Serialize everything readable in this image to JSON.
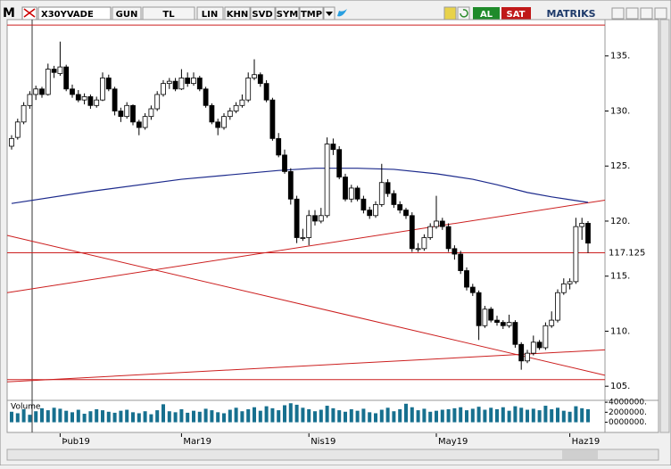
{
  "toolbar": {
    "logo": "M",
    "symbol": "X30YVADE",
    "buttons": [
      "GUN",
      "TL",
      "LIN",
      "KHN",
      "SVD",
      "SYM",
      "TMP"
    ],
    "buy": "AL",
    "sell": "SAT",
    "brand": "MATRIKS"
  },
  "chart_data": {
    "type": "candlestick",
    "categories": [
      null,
      null,
      null,
      null,
      null,
      null,
      null,
      null,
      "Þub19",
      null,
      null,
      null,
      null,
      null,
      null,
      null,
      null,
      null,
      null,
      null,
      null,
      null,
      null,
      null,
      null,
      null,
      null,
      null,
      "Mar19",
      null,
      null,
      null,
      null,
      null,
      null,
      null,
      null,
      null,
      null,
      null,
      null,
      null,
      null,
      null,
      null,
      null,
      null,
      null,
      null,
      "Nis19",
      null,
      null,
      null,
      null,
      null,
      null,
      null,
      null,
      null,
      null,
      null,
      null,
      null,
      null,
      null,
      null,
      null,
      null,
      null,
      null,
      "May19",
      null,
      null,
      null,
      null,
      null,
      null,
      null,
      null,
      null,
      null,
      null,
      null,
      null,
      null,
      null,
      null,
      null,
      null,
      null,
      null,
      null,
      "Haz19",
      null,
      null,
      null
    ],
    "ohlc": [
      [
        126.8,
        127.8,
        126.5,
        127.5
      ],
      [
        127.6,
        129.3,
        127.4,
        129
      ],
      [
        129,
        130.8,
        128.8,
        130.5
      ],
      [
        130.5,
        131.8,
        130.2,
        131.5
      ],
      [
        131.5,
        132.3,
        131,
        132
      ],
      [
        132,
        132.2,
        131.2,
        131.5
      ],
      [
        131.5,
        134.3,
        131.4,
        133.8
      ],
      [
        133.8,
        134.1,
        133,
        133.5
      ],
      [
        133.4,
        136.3,
        133.2,
        134
      ],
      [
        134,
        134.2,
        131.8,
        132
      ],
      [
        132,
        132.4,
        131.2,
        131.5
      ],
      [
        131.5,
        131.9,
        130.8,
        131
      ],
      [
        131,
        131.6,
        130.6,
        131.3
      ],
      [
        131.3,
        131.5,
        130.2,
        130.5
      ],
      [
        130.5,
        131.3,
        130.3,
        131
      ],
      [
        131,
        133.5,
        130.9,
        133
      ],
      [
        133,
        133.3,
        131.8,
        132
      ],
      [
        132,
        132.2,
        129.6,
        130
      ],
      [
        130,
        130.3,
        129,
        129.5
      ],
      [
        129.5,
        130.8,
        129.3,
        130.5
      ],
      [
        130.5,
        130.6,
        128.7,
        129
      ],
      [
        129,
        129.2,
        127.8,
        128.5
      ],
      [
        128.5,
        129.8,
        128.3,
        129.5
      ],
      [
        129.5,
        130.5,
        129.2,
        130.2
      ],
      [
        130.2,
        131.8,
        130,
        131.5
      ],
      [
        131.5,
        132.8,
        131.3,
        132.5
      ],
      [
        132.5,
        133,
        132,
        132.7
      ],
      [
        132.7,
        133,
        131.8,
        132
      ],
      [
        132,
        133.8,
        131.9,
        133
      ],
      [
        133,
        133.5,
        132.2,
        132.5
      ],
      [
        132.5,
        133.5,
        132.3,
        133
      ],
      [
        133,
        133.2,
        131.8,
        132
      ],
      [
        132,
        132.2,
        130.3,
        130.5
      ],
      [
        130.5,
        130.7,
        128.8,
        129
      ],
      [
        129,
        129.3,
        127.8,
        128.5
      ],
      [
        128.5,
        129.8,
        128.3,
        129.5
      ],
      [
        129.5,
        130.3,
        129.2,
        130
      ],
      [
        130,
        130.8,
        129.8,
        130.5
      ],
      [
        130.5,
        131.5,
        130.3,
        131
      ],
      [
        131,
        133.5,
        130.8,
        133
      ],
      [
        133,
        134.7,
        132.8,
        133.3
      ],
      [
        133.3,
        133.5,
        132.2,
        132.5
      ],
      [
        132.5,
        132.8,
        130.8,
        131
      ],
      [
        131,
        131.2,
        127.3,
        127.5
      ],
      [
        127.5,
        128,
        125.8,
        126
      ],
      [
        126,
        126.5,
        124.3,
        124.5
      ],
      [
        124.5,
        124.8,
        121.5,
        122
      ],
      [
        122,
        122.3,
        118,
        118.5
      ],
      [
        118.5,
        119.3,
        118.2,
        118.5
      ],
      [
        118.5,
        121,
        117.8,
        120.5
      ],
      [
        120.5,
        121,
        119.6,
        120
      ],
      [
        120,
        121.2,
        119.8,
        120.5
      ],
      [
        120.5,
        127.6,
        120.3,
        127
      ],
      [
        127,
        127.5,
        126,
        126.5
      ],
      [
        126.5,
        126.8,
        123.8,
        124
      ],
      [
        124,
        124.3,
        121.8,
        122
      ],
      [
        122,
        123.3,
        121.7,
        123
      ],
      [
        123,
        123.2,
        121.8,
        122
      ],
      [
        122,
        122.3,
        120.7,
        121
      ],
      [
        121,
        121.3,
        120.2,
        120.5
      ],
      [
        120.5,
        121.8,
        120.3,
        121.5
      ],
      [
        121.5,
        125.2,
        121.3,
        123.5
      ],
      [
        123.5,
        123.8,
        122.2,
        122.5
      ],
      [
        122.5,
        122.8,
        121.2,
        121.5
      ],
      [
        121.5,
        121.8,
        120.7,
        121
      ],
      [
        121,
        121.2,
        120.2,
        120.5
      ],
      [
        120.5,
        120.8,
        117.2,
        117.5
      ],
      [
        117.5,
        118,
        117.2,
        117.5
      ],
      [
        117.5,
        118.8,
        117.3,
        118.5
      ],
      [
        118.5,
        119.8,
        118.3,
        119.5
      ],
      [
        119.5,
        122.3,
        119.3,
        120
      ],
      [
        120,
        120.3,
        119.2,
        119.5
      ],
      [
        119.5,
        119.8,
        117.2,
        117.5
      ],
      [
        117.5,
        117.8,
        116.5,
        117
      ],
      [
        117,
        117.3,
        115.2,
        115.5
      ],
      [
        115.5,
        115.8,
        113.7,
        114
      ],
      [
        114,
        114.3,
        113.2,
        113.5
      ],
      [
        113.5,
        113.7,
        109.2,
        110.5
      ],
      [
        110.5,
        112.3,
        110.3,
        112
      ],
      [
        112,
        112.2,
        110.8,
        111
      ],
      [
        111,
        111.4,
        110.5,
        110.8
      ],
      [
        110.8,
        111,
        110.2,
        110.5
      ],
      [
        110.5,
        111.5,
        110.3,
        110.8
      ],
      [
        110.8,
        111,
        108.5,
        108.8
      ],
      [
        108.8,
        109,
        106.5,
        107.3
      ],
      [
        107.3,
        108.3,
        107.1,
        108
      ],
      [
        108,
        109.6,
        107.8,
        109
      ],
      [
        109,
        109.2,
        108.3,
        108.5
      ],
      [
        108.5,
        110.8,
        108.3,
        110.5
      ],
      [
        110.5,
        111.8,
        110.3,
        111
      ],
      [
        111,
        113.8,
        110.8,
        113.5
      ],
      [
        113.5,
        114.8,
        113.3,
        114.3
      ],
      [
        114.3,
        114.8,
        113.8,
        114.5
      ],
      [
        114.5,
        120.3,
        114.3,
        119.5
      ],
      [
        119.5,
        120.3,
        118.3,
        119.8
      ],
      [
        119.8,
        120,
        117.1,
        118
      ]
    ],
    "ylim": [
      103.8,
      138.3
    ],
    "yticks": [
      {
        "value": 135,
        "label": "135."
      },
      {
        "value": 130,
        "label": "130."
      },
      {
        "value": 125,
        "label": "125."
      },
      {
        "value": 120,
        "label": "120."
      },
      {
        "value": 115,
        "label": "115."
      },
      {
        "value": 110,
        "label": "110."
      },
      {
        "value": 105,
        "label": "105."
      }
    ],
    "last_price": 117.125,
    "moving_average": {
      "color": "#1c2a8c",
      "x": [
        0,
        13,
        28,
        44,
        50,
        57,
        63,
        70,
        76,
        80,
        85,
        89,
        95
      ],
      "values": [
        121.6,
        122.7,
        123.8,
        124.6,
        124.8,
        124.8,
        124.7,
        124.3,
        123.8,
        123.3,
        122.6,
        122.2,
        121.7
      ]
    },
    "hlines": [
      137.8,
      105.6
    ],
    "trendlines": [
      {
        "start": 118.7,
        "end": 106.0
      },
      {
        "start": 113.5,
        "end": 121.9
      },
      {
        "start": 105.4,
        "end": 108.3
      }
    ],
    "line_color": "#cc1f1f",
    "volume": {
      "label": "Volume",
      "color": "#17708f",
      "values": [
        2100000,
        1800000,
        2600000,
        1500000,
        2200000,
        2800000,
        2400000,
        2900000,
        2700000,
        2300000,
        2000000,
        2500000,
        1700000,
        2200000,
        2600000,
        2400000,
        2100000,
        1900000,
        2300000,
        2500000,
        2000000,
        1800000,
        2200000,
        1600000,
        2400000,
        3600000,
        2200000,
        2000000,
        2600000,
        1900000,
        2300000,
        2100000,
        2700000,
        2400000,
        2000000,
        1800000,
        2500000,
        2900000,
        2200000,
        2600000,
        3000000,
        2300000,
        3200000,
        2800000,
        2400000,
        3400000,
        3800000,
        3500000,
        2900000,
        2600000,
        2200000,
        2500000,
        3300000,
        2800000,
        2400000,
        2100000,
        2600000,
        2300000,
        2700000,
        2000000,
        1800000,
        2500000,
        2900000,
        2200000,
        2600000,
        3700000,
        3000000,
        2400000,
        2700000,
        2100000,
        2300000,
        2500000,
        2600000,
        2800000,
        3000000,
        2400000,
        2700000,
        3100000,
        2500000,
        2900000,
        2600000,
        3000000,
        2300000,
        3200000,
        2900000,
        2500000,
        2700000,
        2400000,
        3300000,
        2600000,
        2900000,
        2300000,
        2100000,
        3200000,
        2800000,
        2600000
      ],
      "vlim": [
        -1500000,
        4200000
      ],
      "vticks": [
        {
          "value": 4000000,
          "label": "4000000."
        },
        {
          "value": 2000000,
          "label": "2000000."
        },
        {
          "value": 0,
          "label": "0000000."
        }
      ]
    }
  }
}
